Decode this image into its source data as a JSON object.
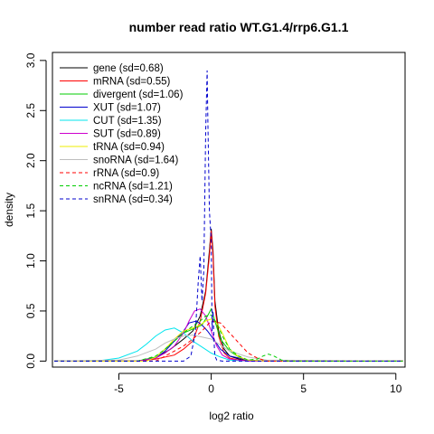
{
  "chart_data": {
    "type": "line",
    "title": "number read ratio WT.G1.4/rrp6.G1.1",
    "xlabel": "log2 ratio",
    "ylabel": "density",
    "xlim": [
      -8.6,
      10.5
    ],
    "ylim": [
      -0.06,
      3.08
    ],
    "xticks": [
      -5,
      0,
      5,
      10
    ],
    "xtick_labels": [
      "-5",
      "0",
      "5",
      "10"
    ],
    "yticks": [
      0.0,
      0.5,
      1.0,
      1.5,
      2.0,
      2.5,
      3.0
    ],
    "ytick_labels": [
      "0.0",
      "0.5",
      "1.0",
      "1.5",
      "2.0",
      "2.5",
      "3.0"
    ],
    "grid": false,
    "legend_position": "top-left",
    "series": [
      {
        "name": "gene (sd=0.68)",
        "color": "#000000",
        "dash": "solid",
        "x": [
          -8.5,
          -4,
          -3,
          -2.2,
          -1.5,
          -1,
          -0.6,
          -0.3,
          -0.1,
          0.0,
          0.1,
          0.2,
          0.4,
          0.7,
          1,
          1.5,
          2,
          3,
          10.4
        ],
        "y": [
          0,
          0,
          0.03,
          0.12,
          0.22,
          0.3,
          0.45,
          0.7,
          1.1,
          1.32,
          1.1,
          0.6,
          0.3,
          0.12,
          0.05,
          0.02,
          0,
          0,
          0
        ]
      },
      {
        "name": "mRNA (sd=0.55)",
        "color": "#ff0000",
        "dash": "solid",
        "x": [
          -8.5,
          -4,
          -3,
          -2,
          -1.5,
          -1,
          -0.6,
          -0.3,
          -0.1,
          0.0,
          0.1,
          0.2,
          0.4,
          0.7,
          1,
          1.5,
          2,
          3,
          10.4
        ],
        "y": [
          0,
          0,
          0.02,
          0.06,
          0.12,
          0.2,
          0.4,
          0.68,
          1.05,
          1.3,
          1.05,
          0.55,
          0.25,
          0.08,
          0.03,
          0.01,
          0,
          0,
          0
        ]
      },
      {
        "name": "divergent (sd=1.06)",
        "color": "#00cd00",
        "dash": "solid",
        "x": [
          -8.5,
          -4,
          -3,
          -2.5,
          -2,
          -1.5,
          -1,
          -0.5,
          -0.2,
          0.0,
          0.2,
          0.5,
          1,
          1.5,
          2,
          3,
          10.4
        ],
        "y": [
          0,
          0,
          0.04,
          0.12,
          0.2,
          0.28,
          0.32,
          0.36,
          0.45,
          0.52,
          0.4,
          0.22,
          0.1,
          0.04,
          0.01,
          0,
          0
        ]
      },
      {
        "name": "XUT (sd=1.07)",
        "color": "#0000cd",
        "dash": "solid",
        "x": [
          -8.5,
          -4,
          -3,
          -2.5,
          -2,
          -1.5,
          -1.2,
          -0.8,
          -0.5,
          -0.2,
          0.2,
          0.5,
          1,
          2,
          3,
          10.4
        ],
        "y": [
          0,
          0,
          0.03,
          0.1,
          0.2,
          0.3,
          0.38,
          0.4,
          0.36,
          0.3,
          0.2,
          0.12,
          0.05,
          0.01,
          0,
          0
        ]
      },
      {
        "name": "CUT (sd=1.35)",
        "color": "#00e5ee",
        "dash": "solid",
        "x": [
          -8.5,
          -6,
          -5,
          -4,
          -3.5,
          -3,
          -2.5,
          -2,
          -1.5,
          -1,
          -0.5,
          0,
          0.5,
          1,
          2,
          3,
          10.4
        ],
        "y": [
          0,
          0.005,
          0.03,
          0.1,
          0.17,
          0.25,
          0.31,
          0.33,
          0.28,
          0.2,
          0.14,
          0.08,
          0.04,
          0.01,
          0,
          0,
          0
        ]
      },
      {
        "name": "SUT (sd=0.89)",
        "color": "#cd00cd",
        "dash": "solid",
        "x": [
          -8.5,
          -4,
          -3,
          -2.5,
          -2,
          -1.5,
          -1.2,
          -0.9,
          -0.6,
          -0.3,
          0,
          0.3,
          0.6,
          1,
          2,
          3,
          10.4
        ],
        "y": [
          0,
          0,
          0.03,
          0.08,
          0.15,
          0.28,
          0.4,
          0.5,
          0.52,
          0.45,
          0.3,
          0.15,
          0.06,
          0.02,
          0,
          0,
          0
        ]
      },
      {
        "name": "tRNA (sd=0.94)",
        "color": "#eeee00",
        "dash": "solid",
        "x": [
          -8.5,
          -3.5,
          -3,
          -2.5,
          -2,
          -1.5,
          -1,
          -0.6,
          -0.3,
          0,
          0.3,
          0.6,
          1,
          1.5,
          2,
          3,
          10.4
        ],
        "y": [
          0,
          0,
          0.04,
          0.12,
          0.22,
          0.3,
          0.33,
          0.36,
          0.4,
          0.42,
          0.38,
          0.28,
          0.12,
          0.04,
          0.01,
          0,
          0
        ]
      },
      {
        "name": "snoRNA (sd=1.64)",
        "color": "#bebebe",
        "dash": "solid",
        "x": [
          -8.5,
          -5,
          -4,
          -3,
          -2.5,
          -2,
          -1.5,
          -1,
          -0.5,
          0,
          0.5,
          1,
          2,
          3,
          10.4
        ],
        "y": [
          0,
          0.01,
          0.05,
          0.12,
          0.18,
          0.22,
          0.25,
          0.26,
          0.24,
          0.22,
          0.16,
          0.1,
          0.04,
          0.01,
          0
        ]
      },
      {
        "name": "rRNA (sd=0.9)",
        "color": "#ff0000",
        "dash": "dashed",
        "x": [
          -8.5,
          -3,
          -2.5,
          -2,
          -1.5,
          -1,
          -0.5,
          0,
          0.5,
          1,
          1.5,
          2,
          2.5,
          3,
          10.4
        ],
        "y": [
          0,
          0,
          0.05,
          0.1,
          0.15,
          0.22,
          0.3,
          0.4,
          0.38,
          0.28,
          0.18,
          0.08,
          0.03,
          0,
          0
        ]
      },
      {
        "name": "ncRNA (sd=1.21)",
        "color": "#00cd00",
        "dash": "dashed",
        "x": [
          -8.5,
          -4,
          -3,
          -2.5,
          -2,
          -1.5,
          -1,
          -0.6,
          -0.3,
          0,
          0.3,
          0.6,
          1,
          1.5,
          2,
          2.5,
          2.8,
          3.1,
          3.4,
          3.8,
          4.2,
          10.4
        ],
        "y": [
          0,
          0,
          0.05,
          0.12,
          0.2,
          0.28,
          0.35,
          0.4,
          0.45,
          0.46,
          0.38,
          0.25,
          0.12,
          0.05,
          0.01,
          0.02,
          0.05,
          0.07,
          0.05,
          0.01,
          0,
          0
        ]
      },
      {
        "name": "snRNA (sd=0.34)",
        "color": "#0000cd",
        "dash": "dashed",
        "x": [
          -8.5,
          -1.5,
          -1.1,
          -0.85,
          -0.7,
          -0.6,
          -0.5,
          -0.4,
          -0.3,
          -0.22,
          -0.18,
          -0.1,
          0,
          0.05,
          0.1,
          0.15,
          0.2,
          0.3,
          0.6,
          10.4
        ],
        "y": [
          0,
          0,
          0.05,
          0.3,
          0.8,
          1.05,
          0.6,
          0.9,
          2.3,
          2.9,
          2.4,
          1.5,
          1.2,
          0.3,
          0.5,
          0.2,
          0.05,
          0.01,
          0,
          0
        ]
      }
    ]
  }
}
